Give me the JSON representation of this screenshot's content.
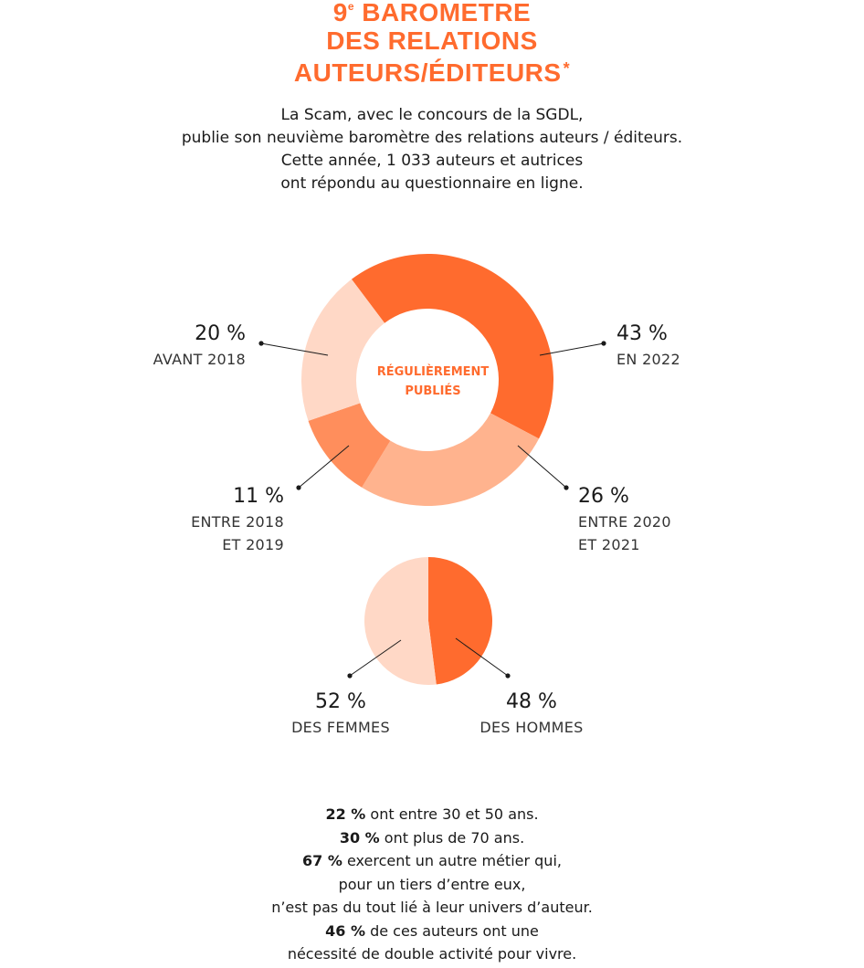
{
  "header": {
    "title_line1_num": "9",
    "title_line1_sup": "e",
    "title_line1_rest": " BAROMETRE",
    "title_line2": "DES RELATIONS",
    "title_line3": "AUTEURS/ÉDITEURS",
    "title_star": "*"
  },
  "intro": [
    "La Scam, avec le concours de la SGDL,",
    "publie son neuvième baromètre des relations auteurs / éditeurs.",
    "Cette année, 1 033 auteurs et autrices",
    "ont répondu au questionnaire en ligne."
  ],
  "chart_data": [
    {
      "type": "pie",
      "subtype": "donut",
      "center_label": [
        "RÉGULIÈREMENT",
        "PUBLIÉS"
      ],
      "slices": [
        {
          "pct_label": "43 %",
          "label_lines": [
            "EN 2022"
          ],
          "value": 43,
          "color": "#ff6b2e"
        },
        {
          "pct_label": "26 %",
          "label_lines": [
            "ENTRE 2020",
            "ET 2021"
          ],
          "value": 26,
          "color": "#ffb38e"
        },
        {
          "pct_label": "11 %",
          "label_lines": [
            "ENTRE 2018",
            "ET 2019"
          ],
          "value": 11,
          "color": "#ff8e5c"
        },
        {
          "pct_label": "20 %",
          "label_lines": [
            "AVANT 2018"
          ],
          "value": 20,
          "color": "#ffd8c6"
        }
      ]
    },
    {
      "type": "pie",
      "slices": [
        {
          "pct_label": "48 %",
          "label_lines": [
            "DES HOMMES"
          ],
          "value": 48,
          "color": "#ff6b2e"
        },
        {
          "pct_label": "52 %",
          "label_lines": [
            "DES FEMMES"
          ],
          "value": 52,
          "color": "#ffd8c6"
        }
      ]
    }
  ],
  "stats": [
    {
      "bold": "22 %",
      "text": " ont entre 30 et 50 ans."
    },
    {
      "bold": "30 %",
      "text": " ont plus de 70 ans."
    },
    {
      "bold": "67 %",
      "text": " exercent un autre métier qui,"
    },
    {
      "bold": "",
      "text": "pour un tiers d’entre eux,"
    },
    {
      "bold": "",
      "text": "n’est pas du tout lié à leur univers d’auteur."
    },
    {
      "bold": "46 %",
      "text": " de ces auteurs ont une"
    },
    {
      "bold": "",
      "text": "nécessité de double activité pour vivre."
    }
  ]
}
